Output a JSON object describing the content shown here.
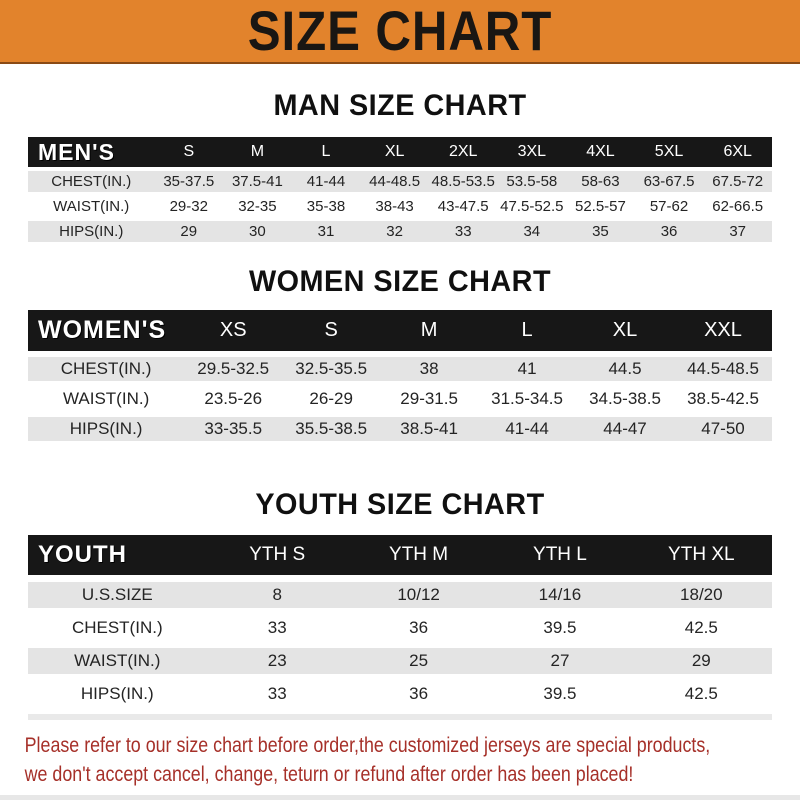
{
  "banner": {
    "title": "SIZE CHART"
  },
  "sections": [
    {
      "heading": "MAN SIZE CHART",
      "table": {
        "header": [
          "MEN'S",
          "S",
          "M",
          "L",
          "XL",
          "2XL",
          "3XL",
          "4XL",
          "5XL",
          "6XL"
        ],
        "rows": [
          [
            "CHEST(IN.)",
            "35-37.5",
            "37.5-41",
            "41-44",
            "44-48.5",
            "48.5-53.5",
            "53.5-58",
            "58-63",
            "63-67.5",
            "67.5-72"
          ],
          [
            "WAIST(IN.)",
            "29-32",
            "32-35",
            "35-38",
            "38-43",
            "43-47.5",
            "47.5-52.5",
            "52.5-57",
            "57-62",
            "62-66.5"
          ],
          [
            "HIPS(IN.)",
            "29",
            "30",
            "31",
            "32",
            "33",
            "34",
            "35",
            "36",
            "37"
          ]
        ]
      }
    },
    {
      "heading": "WOMEN SIZE CHART",
      "table": {
        "header": [
          "WOMEN'S",
          "XS",
          "S",
          "M",
          "L",
          "XL",
          "XXL"
        ],
        "rows": [
          [
            "CHEST(IN.)",
            "29.5-32.5",
            "32.5-35.5",
            "38",
            "41",
            "44.5",
            "44.5-48.5"
          ],
          [
            "WAIST(IN.)",
            "23.5-26",
            "26-29",
            "29-31.5",
            "31.5-34.5",
            "34.5-38.5",
            "38.5-42.5"
          ],
          [
            "HIPS(IN.)",
            "33-35.5",
            "35.5-38.5",
            "38.5-41",
            "41-44",
            "44-47",
            "47-50"
          ]
        ]
      }
    },
    {
      "heading": "YOUTH SIZE CHART",
      "table": {
        "header": [
          "YOUTH",
          "YTH S",
          "YTH M",
          "YTH L",
          "YTH XL"
        ],
        "rows": [
          [
            "U.S.SIZE",
            "8",
            "10/12",
            "14/16",
            "18/20"
          ],
          [
            "CHEST(IN.)",
            "33",
            "36",
            "39.5",
            "42.5"
          ],
          [
            "WAIST(IN.)",
            "23",
            "25",
            "27",
            "29"
          ],
          [
            "HIPS(IN.)",
            "33",
            "36",
            "39.5",
            "42.5"
          ]
        ]
      }
    }
  ],
  "footer": {
    "line1": "Please refer to our size chart before order,the customized jerseys are special products,",
    "line2": "we don't accept cancel, change, teturn or refund after order has been placed!"
  },
  "colors": {
    "banner_bg": "#E2832C",
    "banner_text": "#191613",
    "header_bar_bg": "#171717",
    "header_bar_text": "#FFFFFF",
    "row_alt_bg": "#E4E4E4",
    "footer_text": "#A63029"
  }
}
